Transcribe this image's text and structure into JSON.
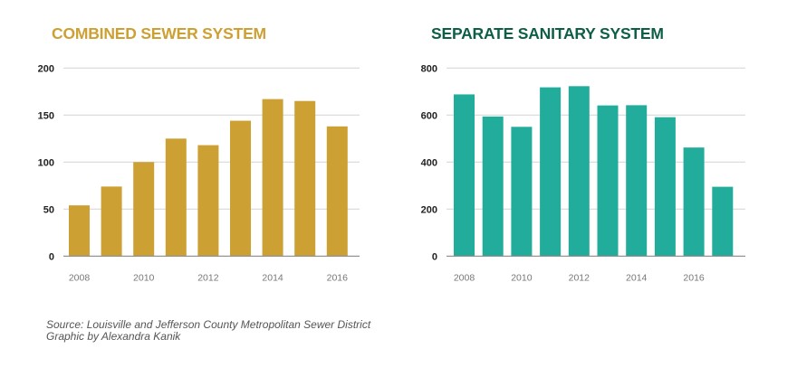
{
  "colors": {
    "combined": "#cda034",
    "separate": "#21ac9c",
    "combined_title": "#cda034",
    "separate_title": "#0e5e47",
    "grid": "#d3d3d3",
    "axis": "#888888"
  },
  "chart_data": [
    {
      "type": "bar",
      "title": "COMBINED SEWER SYSTEM",
      "xlabel": "",
      "ylabel": "",
      "categories": [
        "2008",
        "2009",
        "2010",
        "2011",
        "2012",
        "2013",
        "2014",
        "2015",
        "2016"
      ],
      "values": [
        54,
        74,
        100,
        125,
        118,
        144,
        167,
        165,
        138
      ],
      "xticks": [
        "2008",
        "2010",
        "2012",
        "2014",
        "2016"
      ],
      "yticks": [
        "0",
        "50",
        "100",
        "150",
        "200"
      ],
      "ylim": [
        0,
        200
      ],
      "grid": true,
      "legend": "none"
    },
    {
      "type": "bar",
      "title": "SEPARATE SANITARY SYSTEM",
      "xlabel": "",
      "ylabel": "",
      "categories": [
        "2008",
        "2009",
        "2010",
        "2011",
        "2012",
        "2013",
        "2014",
        "2015",
        "2016",
        "2017"
      ],
      "values": [
        688,
        594,
        550,
        718,
        723,
        641,
        642,
        591,
        462,
        295
      ],
      "xticks": [
        "2008",
        "2010",
        "2012",
        "2014",
        "2016"
      ],
      "yticks": [
        "0",
        "200",
        "400",
        "600",
        "800"
      ],
      "ylim": [
        0,
        800
      ],
      "grid": true,
      "legend": "none"
    }
  ],
  "footer": {
    "source": "Source: Louisville and Jefferson County Metropolitan Sewer District",
    "credit": "Graphic by Alexandra Kanik"
  }
}
